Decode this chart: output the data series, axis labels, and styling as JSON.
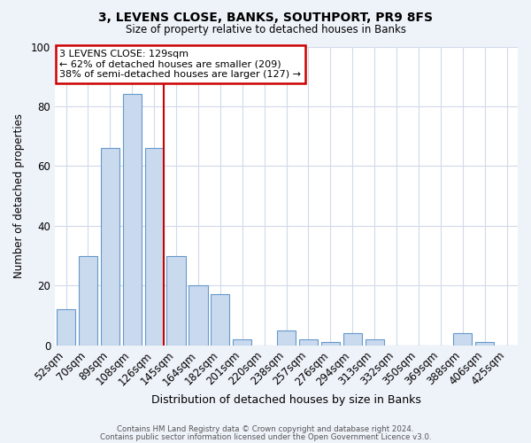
{
  "title": "3, LEVENS CLOSE, BANKS, SOUTHPORT, PR9 8FS",
  "subtitle": "Size of property relative to detached houses in Banks",
  "xlabel": "Distribution of detached houses by size in Banks",
  "ylabel": "Number of detached properties",
  "bar_color": "#c9d9ee",
  "bar_edge_color": "#6699cc",
  "grid_color": "#d0daea",
  "bg_color": "#eef2f9",
  "plot_bg_color": "#ffffff",
  "annotation_line_color": "#cc0000",
  "categories": [
    "52sqm",
    "70sqm",
    "89sqm",
    "108sqm",
    "126sqm",
    "145sqm",
    "164sqm",
    "182sqm",
    "201sqm",
    "220sqm",
    "238sqm",
    "257sqm",
    "276sqm",
    "294sqm",
    "313sqm",
    "332sqm",
    "350sqm",
    "369sqm",
    "388sqm",
    "406sqm",
    "425sqm"
  ],
  "values": [
    12,
    30,
    66,
    84,
    66,
    30,
    20,
    17,
    2,
    0,
    5,
    2,
    1,
    4,
    2,
    0,
    0,
    0,
    4,
    1,
    0
  ],
  "property_line_x": 4,
  "annotation_title": "3 LEVENS CLOSE: 129sqm",
  "annotation_line1": "← 62% of detached houses are smaller (209)",
  "annotation_line2": "38% of semi-detached houses are larger (127) →",
  "ylim": [
    0,
    100
  ],
  "footer1": "Contains HM Land Registry data © Crown copyright and database right 2024.",
  "footer2": "Contains public sector information licensed under the Open Government Licence v3.0."
}
